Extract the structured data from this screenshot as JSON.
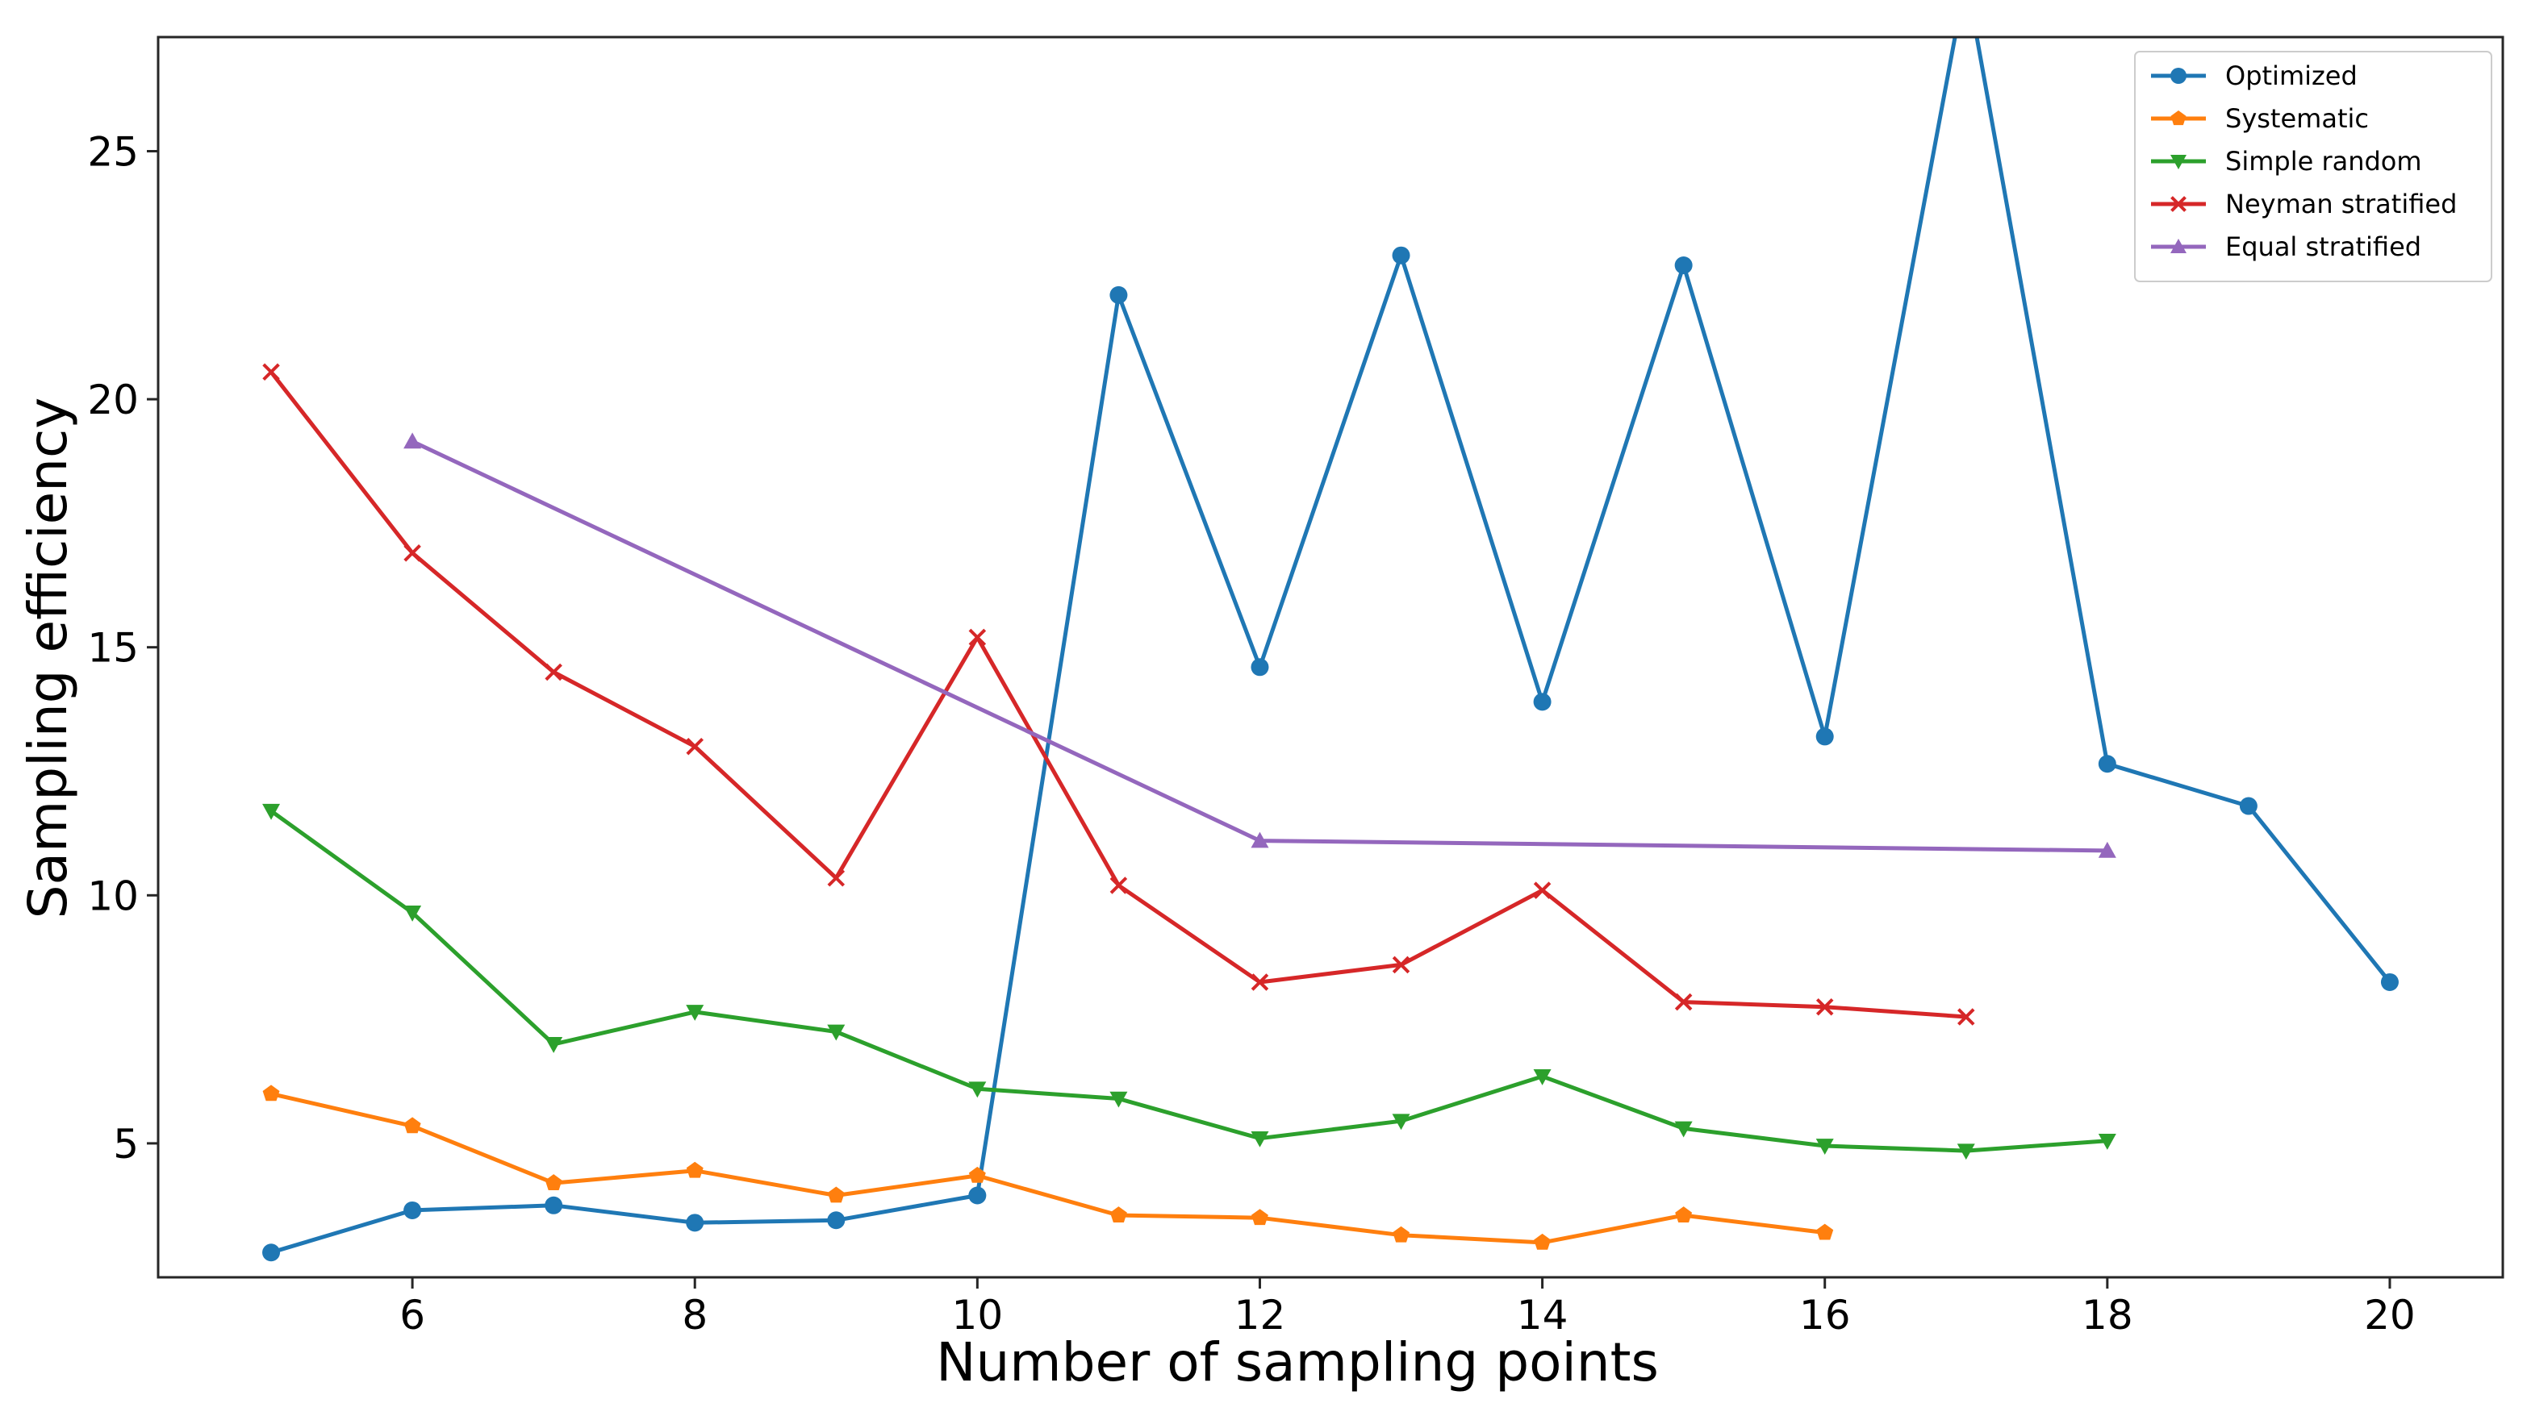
{
  "chart_data": {
    "type": "line",
    "title": "",
    "xlabel": "Number of sampling points",
    "ylabel": "Sampling efficiency",
    "xlim": [
      4.2,
      20.8
    ],
    "ylim": [
      2.3,
      27.3
    ],
    "xticks": [
      6,
      8,
      10,
      12,
      14,
      16,
      18,
      20
    ],
    "yticks": [
      5,
      10,
      15,
      20,
      25
    ],
    "grid": false,
    "legend_position": "top-right",
    "series": [
      {
        "name": "Optimized",
        "color": "#1f77b4",
        "marker": "circle",
        "x": [
          5,
          6,
          7,
          8,
          9,
          10,
          11,
          12,
          13,
          14,
          15,
          16,
          17,
          18,
          19,
          20
        ],
        "y": [
          2.8,
          3.65,
          3.75,
          3.4,
          3.45,
          3.95,
          22.1,
          14.6,
          22.9,
          13.9,
          22.7,
          13.2,
          28.5,
          12.65,
          11.8,
          8.25
        ]
      },
      {
        "name": "Systematic",
        "color": "#ff7f0e",
        "marker": "pentagon",
        "x": [
          5,
          6,
          7,
          8,
          9,
          10,
          11,
          12,
          13,
          14,
          15,
          16
        ],
        "y": [
          6.0,
          5.35,
          4.2,
          4.45,
          3.95,
          4.35,
          3.55,
          3.5,
          3.15,
          3.0,
          3.55,
          3.2
        ]
      },
      {
        "name": "Simple random",
        "color": "#2ca02c",
        "marker": "triangle-down",
        "x": [
          5,
          6,
          7,
          8,
          9,
          10,
          11,
          12,
          13,
          14,
          15,
          16,
          17,
          18
        ],
        "y": [
          11.7,
          9.65,
          7.0,
          7.65,
          7.25,
          6.1,
          5.9,
          5.1,
          5.45,
          6.35,
          5.3,
          4.95,
          4.85,
          5.05
        ]
      },
      {
        "name": "Neyman stratified",
        "color": "#d62728",
        "marker": "x",
        "x": [
          5,
          6,
          7,
          8,
          9,
          10,
          11,
          12,
          13,
          14,
          15,
          16,
          17
        ],
        "y": [
          20.55,
          16.9,
          14.5,
          13.0,
          10.35,
          15.2,
          10.2,
          8.25,
          8.6,
          10.1,
          7.85,
          7.75,
          7.55
        ]
      },
      {
        "name": "Equal stratified",
        "color": "#9467bd",
        "marker": "triangle-up",
        "x": [
          6,
          12,
          18
        ],
        "y": [
          19.15,
          11.1,
          10.9
        ]
      }
    ]
  }
}
